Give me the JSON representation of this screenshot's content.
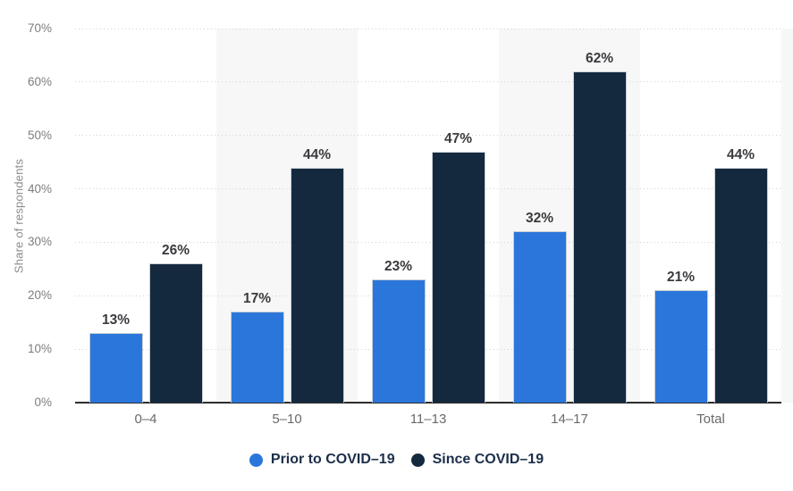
{
  "colors": {
    "prior_blue": "#2B76DB",
    "since_navy": "#14293D",
    "stripe": "#f7f7f7",
    "gridline": "#d2d2d2",
    "axis_line": "#2d2d2d",
    "y_tick_text": "#7d7d7d",
    "x_tick_text": "#69696c",
    "value_label_text": "#393b3e",
    "legend_text": "#1c2e4a",
    "y_axis_title_text": "#8b8b8b"
  },
  "chart_data": {
    "type": "bar",
    "title": "",
    "xlabel": "",
    "ylabel": "Share of respondents",
    "categories": [
      "0–4",
      "5–10",
      "11–13",
      "14–17",
      "Total"
    ],
    "series": [
      {
        "name": "Prior to COVID–19",
        "color": "#2B76DB",
        "values": [
          13,
          17,
          23,
          32,
          21
        ]
      },
      {
        "name": "Since COVID–19",
        "color": "#14293D",
        "values": [
          26,
          44,
          47,
          62,
          44
        ]
      }
    ],
    "value_suffix": "%",
    "ylim": [
      0,
      70
    ],
    "ytick_step": 10,
    "ytick_labels": [
      "0%",
      "10%",
      "20%",
      "30%",
      "40%",
      "50%",
      "60%",
      "70%"
    ],
    "grid": "horizontal-dotted",
    "striped_columns": [
      1,
      3
    ],
    "legend_position": "bottom-center"
  }
}
